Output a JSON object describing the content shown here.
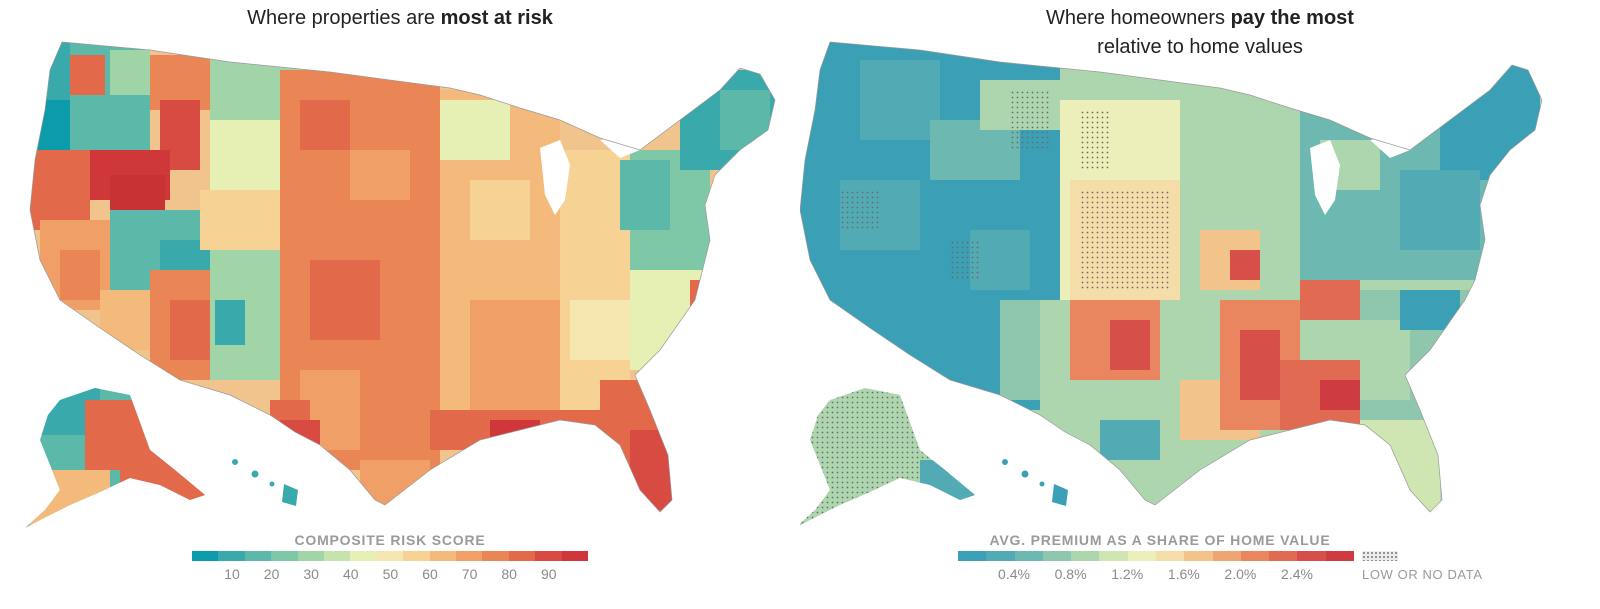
{
  "left": {
    "title_prefix": "Where properties are ",
    "title_bold": "most at risk",
    "legend_title": "COMPOSITE RISK SCORE",
    "legend_colors": [
      "#0c9bab",
      "#3aa9ac",
      "#5cb8a8",
      "#7ec7a7",
      "#a1d5a8",
      "#c5e3ac",
      "#e6efb4",
      "#f6e7b0",
      "#f6d295",
      "#f4ba7c",
      "#f0a067",
      "#ea8556",
      "#e26a4b",
      "#d74b43",
      "#d0373b"
    ],
    "ticks": [
      "10",
      "20",
      "30",
      "40",
      "50",
      "60",
      "70",
      "80",
      "90"
    ]
  },
  "right": {
    "title_prefix": "Where homeowners ",
    "title_bold": "pay the most",
    "title_line2": "relative to home values",
    "legend_title": "AVG. PREMIUM AS A SHARE OF HOME VALUE",
    "legend_colors": [
      "#3ba0b5",
      "#52abb4",
      "#6db8b0",
      "#8ec7ad",
      "#aed6ae",
      "#cfe5b2",
      "#ecefba",
      "#f5ddaa",
      "#f3c38c",
      "#ef a573",
      "#e98660",
      "#e06a52",
      "#d65049",
      "#ce3c42"
    ],
    "ticks": [
      "0.4%",
      "0.8%",
      "1.2%",
      "1.6%",
      "2.0%",
      "2.4%"
    ],
    "nodata_label": "LOW OR NO DATA"
  }
}
